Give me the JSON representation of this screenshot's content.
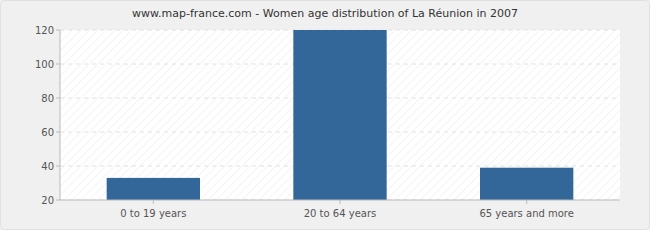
{
  "chart_data": {
    "type": "bar",
    "title": "www.map-france.com - Women age distribution of La Réunion in 2007",
    "categories": [
      "0 to 19 years",
      "20 to 64 years",
      "65 years and more"
    ],
    "values": [
      33,
      120,
      39
    ],
    "color": "#336699",
    "ylim": [
      20,
      120
    ],
    "yticks": [
      20,
      40,
      60,
      80,
      100,
      120
    ],
    "grid": true
  }
}
